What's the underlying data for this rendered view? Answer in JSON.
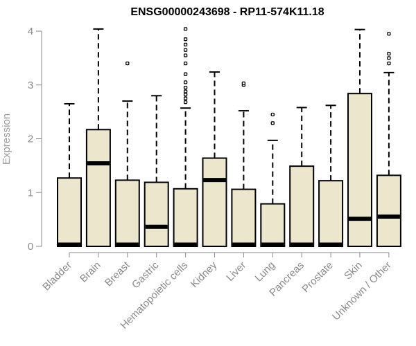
{
  "chart_data": {
    "type": "boxplot",
    "title": "ENSG00000243698 - RP11-574K11.18",
    "ylabel": "Expression",
    "ylim": [
      0,
      4
    ],
    "yticks": [
      "0",
      "1",
      "2",
      "3",
      "4"
    ],
    "categories": [
      "Bladder",
      "Brain",
      "Breast",
      "Gastric",
      "Hematopoietic cells",
      "Kidney",
      "Liver",
      "Lung",
      "Pancreas",
      "Prostate",
      "Skin",
      "Unknown / Other"
    ],
    "boxes": [
      {
        "min": 0,
        "q1": 0,
        "median": 0.02,
        "q3": 1.27,
        "max": 2.65,
        "outliers": []
      },
      {
        "min": 0,
        "q1": 0,
        "median": 1.53,
        "q3": 2.17,
        "max": 4.04,
        "outliers": []
      },
      {
        "min": 0,
        "q1": 0,
        "median": 0.02,
        "q3": 1.23,
        "max": 2.7,
        "outliers": [
          3.4
        ]
      },
      {
        "min": 0,
        "q1": 0,
        "median": 0.35,
        "q3": 1.19,
        "max": 2.8,
        "outliers": []
      },
      {
        "min": 0,
        "q1": 0,
        "median": 0.02,
        "q3": 1.07,
        "max": 2.57,
        "outliers": [
          2.68,
          2.75,
          2.82,
          2.88,
          2.95,
          3.05,
          3.2,
          3.4,
          3.55,
          3.65,
          3.75,
          3.85,
          4.04
        ]
      },
      {
        "min": 0,
        "q1": 0,
        "median": 1.22,
        "q3": 1.64,
        "max": 3.24,
        "outliers": []
      },
      {
        "min": 0,
        "q1": 0,
        "median": 0.02,
        "q3": 1.06,
        "max": 2.52,
        "outliers": [
          3.0,
          3.03
        ]
      },
      {
        "min": 0,
        "q1": 0,
        "median": 0.02,
        "q3": 0.79,
        "max": 1.97,
        "outliers": [
          2.29,
          2.45
        ]
      },
      {
        "min": 0,
        "q1": 0,
        "median": 0.02,
        "q3": 1.49,
        "max": 2.58,
        "outliers": []
      },
      {
        "min": 0,
        "q1": 0,
        "median": 0.02,
        "q3": 1.22,
        "max": 2.62,
        "outliers": []
      },
      {
        "min": 0,
        "q1": 0,
        "median": 0.5,
        "q3": 2.84,
        "max": 4.03,
        "outliers": []
      },
      {
        "min": 0,
        "q1": 0,
        "median": 0.54,
        "q3": 1.32,
        "max": 3.23,
        "outliers": [
          3.4,
          3.5,
          3.58,
          3.95
        ]
      }
    ],
    "colors": {
      "box_fill": "#ece6cd",
      "box_stroke": "#000000",
      "axis": "#8a8a8a"
    }
  }
}
